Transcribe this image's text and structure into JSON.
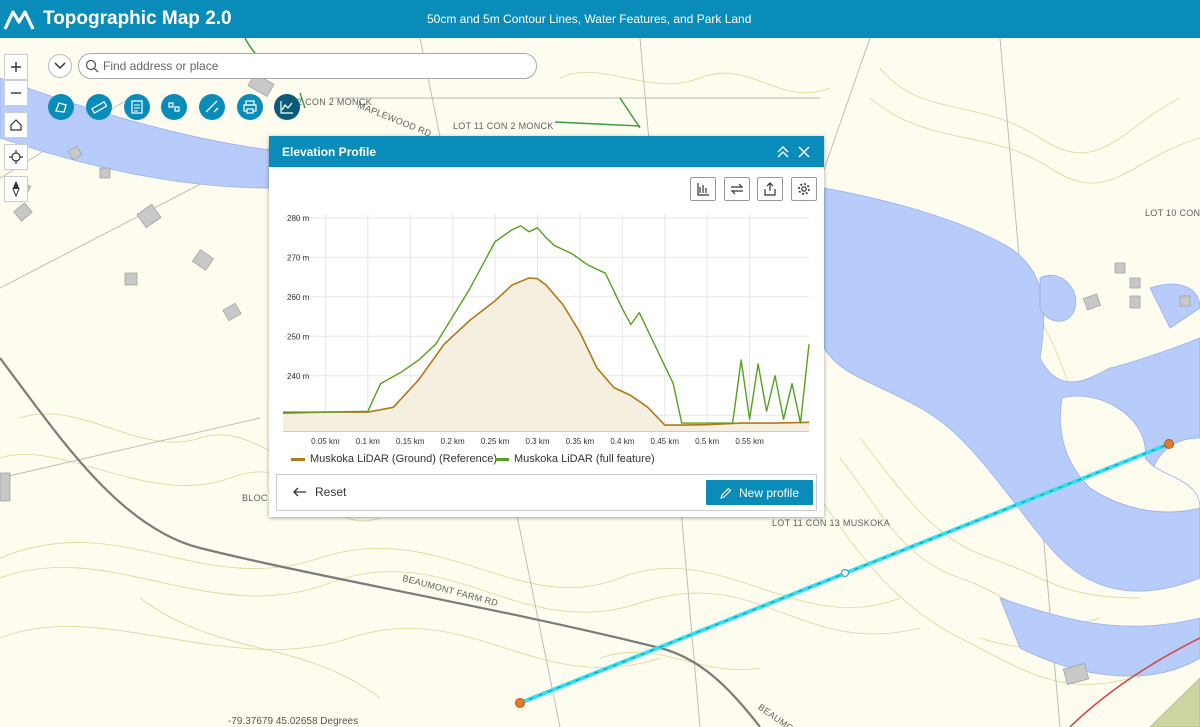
{
  "header": {
    "title": "Topographic Map 2.0",
    "subtitle": "50cm and 5m Contour Lines, Water Features, and Park Land"
  },
  "search": {
    "placeholder": "Find address or place"
  },
  "map_controls": [
    "zoom-in",
    "zoom-out",
    "home",
    "locate",
    "compass"
  ],
  "widgets": [
    "measure-area-icon",
    "measure-distance-icon",
    "layer-list-icon",
    "legend-icon",
    "draw-icon",
    "print-icon",
    "elevation-profile-icon"
  ],
  "map_labels": {
    "lot11con2": "LOT 11 CON 2 MONCK",
    "maplewood": "MAPLEWOOD RD",
    "con2monck_left": "2 CON 2 MONCK",
    "lot10con": "LOT 10 CON",
    "bloc": "BLOC",
    "lot11con13": "LOT 11 CON 13 MUSKOKA",
    "beaumont": "BEAUMONT FARM RD",
    "beaumont2": "BEAUMO"
  },
  "panel": {
    "title": "Elevation Profile",
    "reset_label": "Reset",
    "new_profile_label": "New profile"
  },
  "coords_text": "-79.37679 45.02658 Degrees",
  "colors": {
    "accent": "#0a8cba",
    "ground": "#b07a1c",
    "full_feature": "#56a01f",
    "profile_line": "#33e0f0"
  },
  "chart_data": {
    "type": "line",
    "xlabel": "",
    "ylabel": "",
    "xlim": [
      0,
      0.62
    ],
    "ylim": [
      226,
      281
    ],
    "x_ticks": [
      "0.05 km",
      "0.1 km",
      "0.15 km",
      "0.2 km",
      "0.25 km",
      "0.3 km",
      "0.35 km",
      "0.4 km",
      "0.45 km",
      "0.5 km",
      "0.55 km"
    ],
    "y_ticks": [
      "230 m",
      "240 m",
      "250 m",
      "260 m",
      "270 m",
      "280 m"
    ],
    "grid": true,
    "legend": "bottom",
    "series": [
      {
        "name": "Muskoka LiDAR (Ground) (Reference)",
        "x": [
          0,
          0.05,
          0.1,
          0.13,
          0.16,
          0.19,
          0.22,
          0.25,
          0.27,
          0.29,
          0.3,
          0.31,
          0.33,
          0.35,
          0.37,
          0.39,
          0.41,
          0.43,
          0.45,
          0.47,
          0.5,
          0.54,
          0.58,
          0.62
        ],
        "y": [
          230.5,
          230.8,
          230.8,
          232,
          239,
          248,
          254,
          259,
          263,
          264.8,
          264.6,
          263,
          258,
          251,
          242,
          237,
          235,
          232,
          227.5,
          227.5,
          227.6,
          228,
          228,
          228.2
        ]
      },
      {
        "name": "Muskoka LiDAR (full feature)",
        "x": [
          0,
          0.05,
          0.1,
          0.115,
          0.14,
          0.16,
          0.18,
          0.2,
          0.22,
          0.24,
          0.25,
          0.27,
          0.28,
          0.29,
          0.3,
          0.31,
          0.32,
          0.34,
          0.36,
          0.38,
          0.4,
          0.41,
          0.42,
          0.44,
          0.46,
          0.47,
          0.5,
          0.53,
          0.54,
          0.55,
          0.56,
          0.57,
          0.58,
          0.59,
          0.6,
          0.61,
          0.62
        ],
        "y": [
          230.8,
          230.8,
          231,
          238,
          241,
          244,
          248,
          255,
          262,
          270,
          274,
          277,
          278,
          276.5,
          277.5,
          275,
          273,
          271,
          268,
          266,
          257,
          253,
          256,
          247,
          238,
          228,
          228,
          228,
          244,
          229,
          243,
          231,
          240,
          229,
          238,
          228,
          248
        ]
      }
    ]
  }
}
